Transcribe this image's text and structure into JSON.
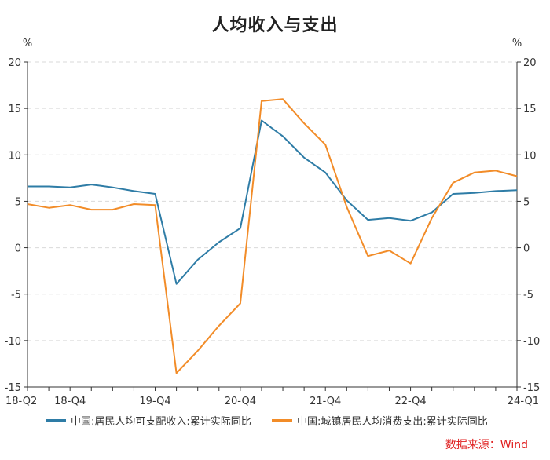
{
  "title": "人均收入与支出",
  "source": "数据来源：Wind",
  "colors": {
    "income": "#2e7ca6",
    "consumption": "#f28c28",
    "grid": "#d9d9d9",
    "axis": "#333333"
  },
  "chart_data": {
    "type": "line",
    "title": "人均收入与支出",
    "x": [
      "18-Q2",
      "18-Q3",
      "18-Q4",
      "19-Q1",
      "19-Q2",
      "19-Q3",
      "19-Q4",
      "20-Q1",
      "20-Q2",
      "20-Q3",
      "20-Q4",
      "21-Q1",
      "21-Q2",
      "21-Q3",
      "21-Q4",
      "22-Q1",
      "22-Q2",
      "22-Q3",
      "22-Q4",
      "23-Q1",
      "23-Q2",
      "23-Q3",
      "23-Q4",
      "24-Q1"
    ],
    "x_tick_labels": [
      "18-Q2",
      "18-Q4",
      "19-Q4",
      "20-Q4",
      "21-Q4",
      "22-Q4",
      "24-Q1"
    ],
    "y_left_unit": "%",
    "y_right_unit": "%",
    "ylim": [
      -15,
      20
    ],
    "yticks": [
      -15,
      -10,
      -5,
      0,
      5,
      10,
      15,
      20
    ],
    "grid": true,
    "legend_position": "bottom",
    "series": [
      {
        "name": "中国:居民人均可支配收入:累计实际同比",
        "color": "#2e7ca6",
        "values": [
          6.6,
          6.6,
          6.5,
          6.8,
          6.5,
          6.1,
          5.8,
          -3.9,
          -1.3,
          0.6,
          2.1,
          13.7,
          12.0,
          9.7,
          8.1,
          5.1,
          3.0,
          3.2,
          2.9,
          3.8,
          5.8,
          5.9,
          6.1,
          6.2
        ]
      },
      {
        "name": "中国:城镇居民人均消费支出:累计实际同比",
        "color": "#f28c28",
        "values": [
          4.7,
          4.3,
          4.6,
          4.1,
          4.1,
          4.7,
          4.6,
          -13.5,
          -11.1,
          -8.4,
          -6.0,
          15.8,
          16.0,
          13.4,
          11.1,
          4.4,
          -0.9,
          -0.3,
          -1.7,
          3.2,
          7.0,
          8.1,
          8.3,
          7.7
        ]
      }
    ]
  }
}
